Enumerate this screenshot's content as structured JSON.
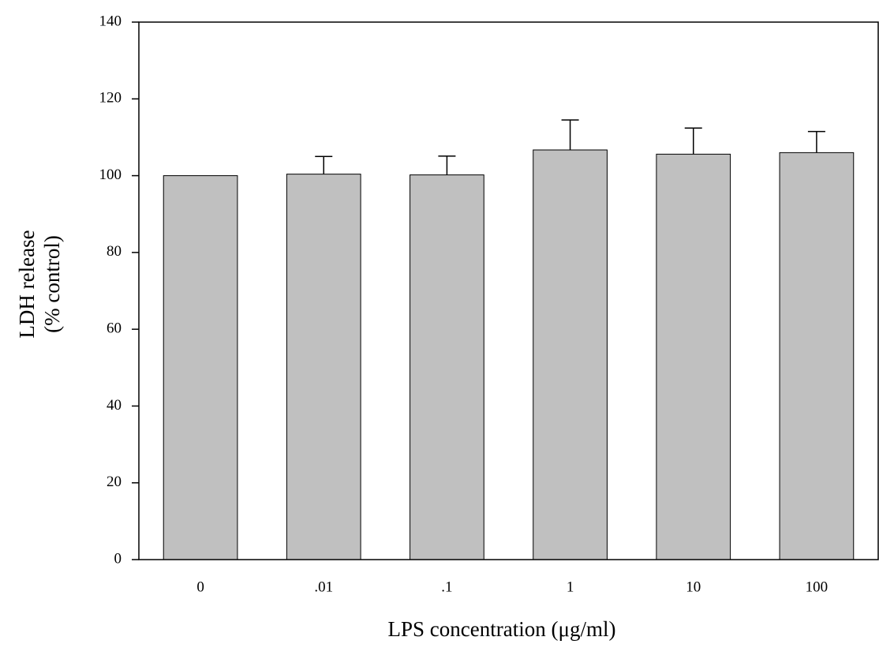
{
  "chart_data": {
    "type": "bar",
    "x_label": "LPS concentration (μg/ml)",
    "y_label": [
      "LDH release",
      "(% control)"
    ],
    "categories": [
      "0",
      ".01",
      ".1",
      "1",
      "10",
      "100"
    ],
    "values": [
      100,
      100.4,
      100.2,
      106.7,
      105.6,
      106
    ],
    "errors": [
      null,
      4.6,
      4.9,
      7.8,
      6.8,
      5.5
    ],
    "color": "#c0c0c0",
    "ylim": [
      0,
      140
    ],
    "yticks": [
      0,
      20,
      40,
      60,
      80,
      100,
      120,
      140
    ]
  }
}
